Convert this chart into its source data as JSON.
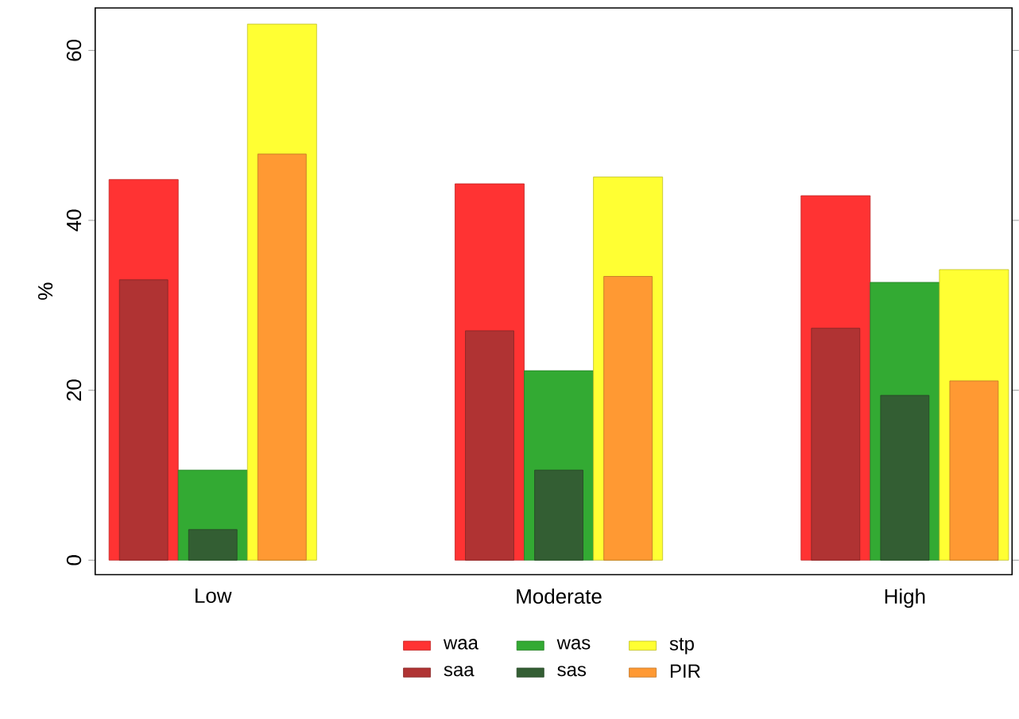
{
  "chart_data": {
    "type": "bar",
    "ylabel": "%",
    "categories": [
      "Low",
      "Moderate",
      "High"
    ],
    "series": [
      {
        "name": "waa",
        "color": "#ff3333",
        "values": [
          44.8,
          44.3,
          42.9
        ]
      },
      {
        "name": "saa",
        "color": "#b03333",
        "values": [
          33.0,
          27.0,
          27.3
        ]
      },
      {
        "name": "was",
        "color": "#33aa33",
        "values": [
          10.6,
          22.3,
          32.7
        ]
      },
      {
        "name": "sas",
        "color": "#335e33",
        "values": [
          3.6,
          10.6,
          19.4
        ]
      },
      {
        "name": "stp",
        "color": "#ffff33",
        "values": [
          63.1,
          45.1,
          34.2
        ]
      },
      {
        "name": "PIR",
        "color": "#ff9933",
        "values": [
          47.8,
          33.4,
          21.1
        ]
      }
    ],
    "ylim": [
      -1.7,
      65
    ],
    "yticks": [
      0,
      20,
      40,
      60
    ],
    "grid": false,
    "legend": "bottom"
  }
}
